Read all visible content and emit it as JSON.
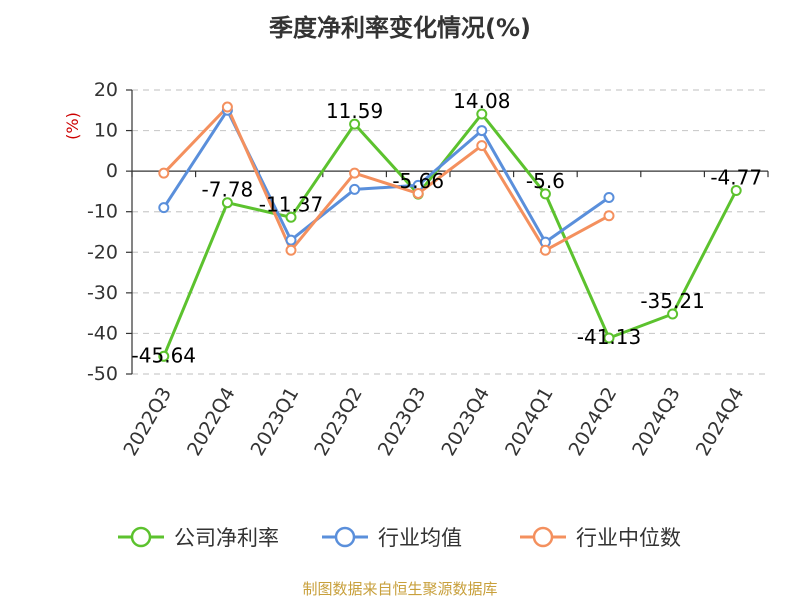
{
  "title": "季度净利率变化情况(%)",
  "source": "制图数据来自恒生聚源数据库",
  "chart_data": {
    "type": "line",
    "title": "季度净利率变化情况(%)",
    "ylabel": "(%)",
    "categories": [
      "2022Q3",
      "2022Q4",
      "2023Q1",
      "2023Q2",
      "2023Q3",
      "2023Q4",
      "2024Q1",
      "2024Q2",
      "2024Q3",
      "2024Q4"
    ],
    "ylim": [
      -50,
      20
    ],
    "yticks": [
      20,
      10,
      0,
      -10,
      -20,
      -30,
      -40,
      -50
    ],
    "grid": true,
    "legend_position": "bottom",
    "series": [
      {
        "name": "公司净利率",
        "color": "#5cc22e",
        "values": [
          -45.64,
          -7.78,
          -11.37,
          11.59,
          -5.66,
          14.08,
          -5.6,
          -41.13,
          -35.21,
          -4.77
        ],
        "labels": [
          "-45.64",
          "-7.78",
          "-11.37",
          "11.59",
          "-5.66",
          "14.08",
          "-5.6",
          "-41.13",
          "-35.21",
          "-4.77"
        ]
      },
      {
        "name": "行业均值",
        "color": "#5a8fdb",
        "values": [
          -9.0,
          15.0,
          -17.0,
          -4.5,
          -3.5,
          10.0,
          -17.5,
          -6.5,
          null,
          null
        ]
      },
      {
        "name": "行业中位数",
        "color": "#f4905e",
        "values": [
          -0.5,
          15.8,
          -19.5,
          -0.5,
          -5.5,
          6.3,
          -19.5,
          -11.0,
          null,
          null
        ]
      }
    ]
  }
}
